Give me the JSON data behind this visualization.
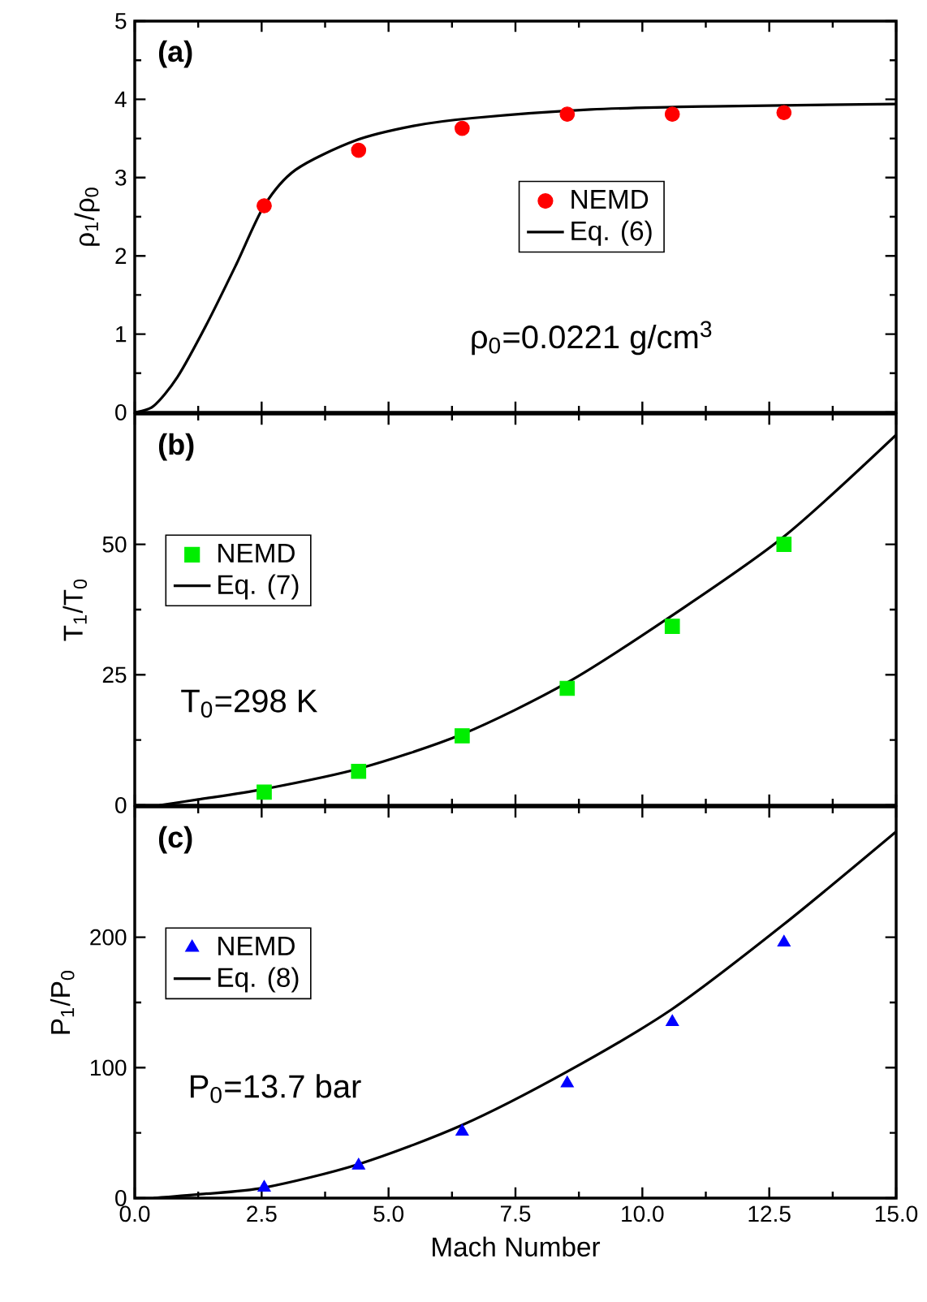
{
  "chart_data": [
    {
      "type": "line",
      "ylabel": "ρ$_{1}$/ρ$_{0}$",
      "annotations": [
        "(a)",
        "ρ$_{0}$=0.0221 g/cm$^{3}$"
      ],
      "xlim": [
        0,
        15
      ],
      "xticks": [
        0,
        2.5,
        5,
        7.5,
        10,
        12.5,
        15
      ],
      "ylim": [
        0,
        5
      ],
      "yticks": [
        0,
        1,
        2,
        3,
        4,
        5
      ],
      "tick_labels": "y",
      "legend": "center",
      "series": [
        {
          "name": "NEMD",
          "type": "scatter",
          "marker": "circle",
          "color": "#ff0000",
          "x": [
            2.55,
            4.41,
            6.45,
            8.52,
            10.59,
            12.79
          ],
          "values": [
            2.64,
            3.35,
            3.63,
            3.81,
            3.81,
            3.83
          ]
        },
        {
          "name": "Eq. (6)",
          "type": "line",
          "color": "#000000",
          "x": [
            0,
            0.37,
            0.84,
            1.42,
            2.0,
            2.55,
            3.17,
            4.33,
            5.49,
            6.65,
            8.98,
            11.3,
            15
          ],
          "values": [
            0,
            0.08,
            0.45,
            1.13,
            1.89,
            2.64,
            3.1,
            3.47,
            3.66,
            3.76,
            3.87,
            3.91,
            3.94
          ]
        }
      ]
    },
    {
      "type": "line",
      "ylabel": "T$_{1}$/T$_{0}$",
      "annotations": [
        "(b)",
        "T$_{0}$=298 K"
      ],
      "xlim": [
        0,
        15
      ],
      "xticks": [
        0,
        2.5,
        5,
        7.5,
        10,
        12.5,
        15
      ],
      "ylim": [
        0,
        75
      ],
      "yticks": [
        0,
        25,
        50
      ],
      "tick_labels": "y",
      "legend": "left",
      "series": [
        {
          "name": "NEMD",
          "type": "scatter",
          "marker": "square",
          "color": "#00ee00",
          "x": [
            2.55,
            4.41,
            6.45,
            8.52,
            10.59,
            12.79
          ],
          "values": [
            2.5,
            6.5,
            13.3,
            22.4,
            34.3,
            50
          ]
        },
        {
          "name": "Eq. (7)",
          "type": "line",
          "color": "#000000",
          "x": [
            0.49,
            1.25,
            2.55,
            4.41,
            6.45,
            8.52,
            10.59,
            12.79,
            15
          ],
          "values": [
            0,
            1.1,
            3.1,
            7.0,
            13.6,
            23.5,
            36.4,
            51.5,
            71.0
          ]
        }
      ]
    },
    {
      "type": "line",
      "xlabel": "Mach Number",
      "ylabel": "P$_{1}$/P$_{0}$",
      "annotations": [
        "(c)",
        "P$_{0}$=13.7 bar"
      ],
      "xlim": [
        0,
        15
      ],
      "xticks": [
        {
          "value": 0,
          "label": "0.0"
        },
        {
          "value": 2.5,
          "label": "2.5"
        },
        {
          "value": 5,
          "label": "5.0"
        },
        {
          "value": 7.5,
          "label": "7.5"
        },
        {
          "value": 10,
          "label": "10.0"
        },
        {
          "value": 12.5,
          "label": "12.5"
        },
        {
          "value": 15,
          "label": "15.0"
        }
      ],
      "ylim": [
        0,
        300
      ],
      "yticks": [
        0,
        100,
        200
      ],
      "legend": "left",
      "series": [
        {
          "name": "NEMD",
          "type": "scatter",
          "marker": "triangle",
          "color": "#0000ff",
          "x": [
            2.55,
            4.41,
            6.45,
            8.52,
            10.59,
            12.79
          ],
          "values": [
            8,
            25,
            51,
            88,
            135,
            196
          ]
        },
        {
          "name": "Eq. (8)",
          "type": "line",
          "color": "#000000",
          "x": [
            0.37,
            1.3,
            2.55,
            4.41,
            6.45,
            8.52,
            10.59,
            12.79,
            15
          ],
          "values": [
            0,
            3,
            8,
            26,
            56,
            97,
            145,
            210,
            281
          ]
        }
      ]
    }
  ]
}
